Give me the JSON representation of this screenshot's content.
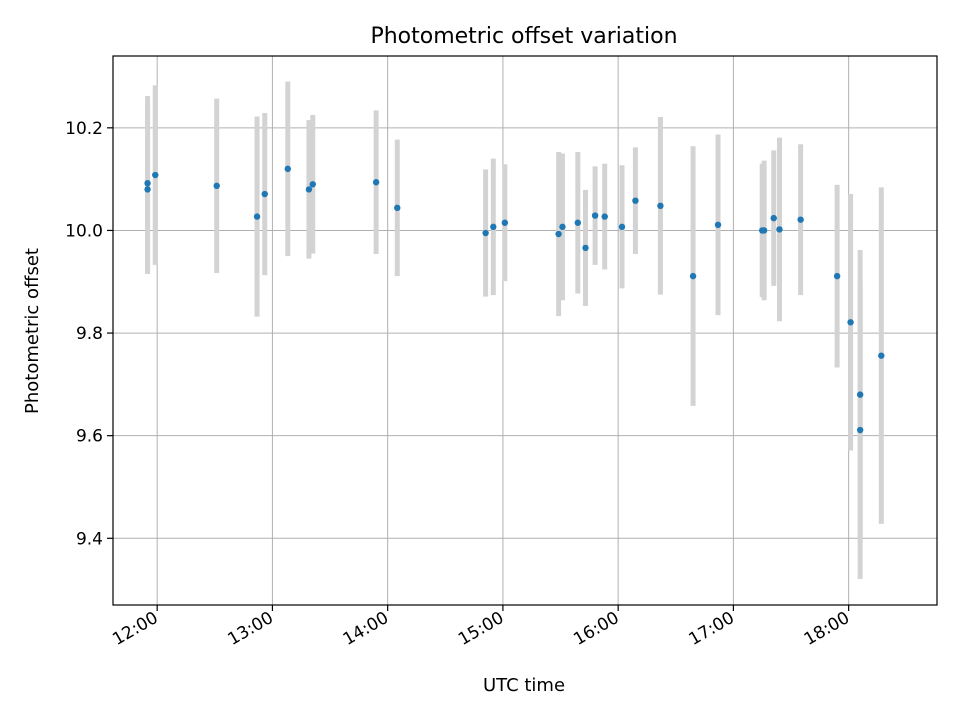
{
  "colors": {
    "marker": "#1f77b4",
    "errorbar": "#d3d3d3",
    "grid": "#b0b0b0",
    "axis": "#000000",
    "background": "#ffffff"
  },
  "chart_data": {
    "type": "scatter",
    "title": "Photometric offset variation",
    "xlabel": "UTC time",
    "ylabel": "Photometric offset",
    "grid": true,
    "x_unit": "UTC time (HH:MM)",
    "xlim": [
      "11:37",
      "18:46"
    ],
    "ylim": [
      9.27,
      10.34
    ],
    "x_ticks": [
      "12:00",
      "13:00",
      "14:00",
      "15:00",
      "16:00",
      "17:00",
      "18:00"
    ],
    "y_ticks": [
      9.4,
      9.6,
      9.8,
      10.0,
      10.2
    ],
    "y_tick_labels": [
      "9.4",
      "9.6",
      "9.8",
      "10.0",
      "10.2"
    ],
    "series": [
      {
        "points": [
          {
            "x": "11:55",
            "y": 10.08,
            "err": 0.165
          },
          {
            "x": "11:55",
            "y": 10.092,
            "err": 0.17
          },
          {
            "x": "11:59",
            "y": 10.108,
            "err": 0.175
          },
          {
            "x": "12:31",
            "y": 10.087,
            "err": 0.17
          },
          {
            "x": "12:52",
            "y": 10.027,
            "err": 0.195
          },
          {
            "x": "12:56",
            "y": 10.071,
            "err": 0.158
          },
          {
            "x": "13:08",
            "y": 10.12,
            "err": 0.17
          },
          {
            "x": "13:19",
            "y": 10.08,
            "err": 0.135
          },
          {
            "x": "13:21",
            "y": 10.09,
            "err": 0.135
          },
          {
            "x": "13:54",
            "y": 10.094,
            "err": 0.14
          },
          {
            "x": "14:05",
            "y": 10.044,
            "err": 0.133
          },
          {
            "x": "14:51",
            "y": 9.995,
            "err": 0.124
          },
          {
            "x": "14:55",
            "y": 10.007,
            "err": 0.133
          },
          {
            "x": "15:01",
            "y": 10.015,
            "err": 0.114
          },
          {
            "x": "15:29",
            "y": 9.993,
            "err": 0.16
          },
          {
            "x": "15:31",
            "y": 10.007,
            "err": 0.143
          },
          {
            "x": "15:39",
            "y": 10.015,
            "err": 0.138
          },
          {
            "x": "15:43",
            "y": 9.966,
            "err": 0.113
          },
          {
            "x": "15:48",
            "y": 10.029,
            "err": 0.096
          },
          {
            "x": "15:53",
            "y": 10.027,
            "err": 0.103
          },
          {
            "x": "16:02",
            "y": 10.007,
            "err": 0.12
          },
          {
            "x": "16:09",
            "y": 10.058,
            "err": 0.104
          },
          {
            "x": "16:22",
            "y": 10.048,
            "err": 0.173
          },
          {
            "x": "16:39",
            "y": 9.911,
            "err": 0.253
          },
          {
            "x": "16:52",
            "y": 10.011,
            "err": 0.176
          },
          {
            "x": "17:15",
            "y": 10.0,
            "err": 0.13
          },
          {
            "x": "17:16",
            "y": 10.0,
            "err": 0.136
          },
          {
            "x": "17:21",
            "y": 10.024,
            "err": 0.132
          },
          {
            "x": "17:24",
            "y": 10.002,
            "err": 0.179
          },
          {
            "x": "17:35",
            "y": 10.021,
            "err": 0.147
          },
          {
            "x": "17:54",
            "y": 9.911,
            "err": 0.178
          },
          {
            "x": "18:01",
            "y": 9.821,
            "err": 0.25
          },
          {
            "x": "18:06",
            "y": 9.68,
            "err": 0.282
          },
          {
            "x": "18:06",
            "y": 9.611,
            "err": 0.29
          },
          {
            "x": "18:17",
            "y": 9.756,
            "err": 0.328
          }
        ]
      }
    ]
  }
}
